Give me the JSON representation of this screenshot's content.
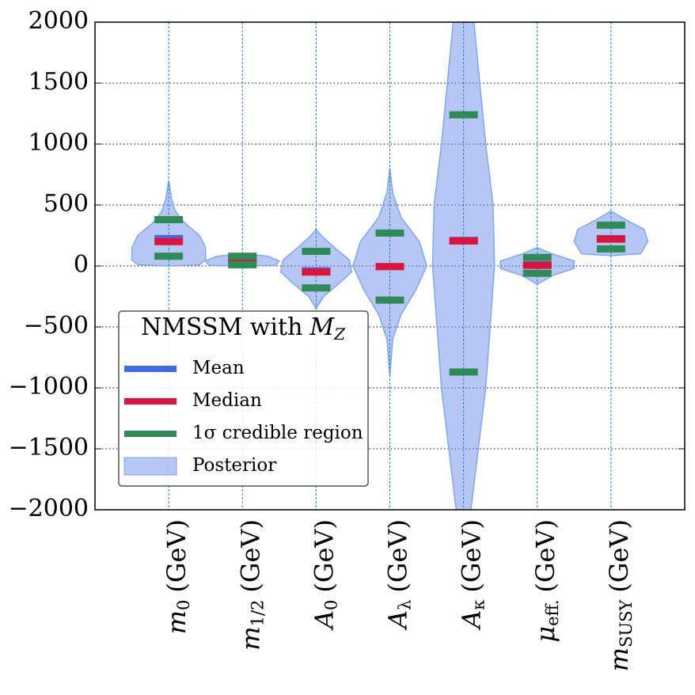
{
  "chart_data": {
    "type": "violin",
    "categories": [
      {
        "symbol": "m",
        "subscript": "0",
        "unit": "(GeV)"
      },
      {
        "symbol": "m",
        "subscript": "1/2",
        "unit": "(GeV)"
      },
      {
        "symbol": "A",
        "subscript": "0",
        "unit": "(GeV)"
      },
      {
        "symbol": "A",
        "subscript": "λ",
        "unit": "(GeV)"
      },
      {
        "symbol": "A",
        "subscript": "κ",
        "unit": "(GeV)"
      },
      {
        "symbol": "μ",
        "subscript": "eff.",
        "unit": "(GeV)"
      },
      {
        "symbol": "m",
        "subscript": "SUSY",
        "unit": "(GeV)"
      }
    ],
    "ylim": [
      -2000,
      2000
    ],
    "yticks": [
      {
        "value": -2000,
        "label": "−2000"
      },
      {
        "value": -1500,
        "label": "−1500"
      },
      {
        "value": -1000,
        "label": "−1000"
      },
      {
        "value": -500,
        "label": "−500"
      },
      0,
      500,
      1000,
      1500,
      2000
    ],
    "grid": true,
    "legend_title": {
      "text": "NMSSM with",
      "symbol": "M",
      "subscript": "Z"
    },
    "legend": "lower left",
    "series": [
      {
        "name": "Mean",
        "color": "#4169e1",
        "values": [
          225,
          45,
          -40,
          -5,
          210,
          10,
          225
        ]
      },
      {
        "name": "Median",
        "color": "#dc143c",
        "values": [
          200,
          40,
          -50,
          -5,
          205,
          5,
          220
        ]
      },
      {
        "name": "1σ credible region",
        "color": "#2e8b57",
        "lower": [
          80,
          10,
          -180,
          -280,
          -870,
          -60,
          140
        ],
        "upper": [
          380,
          80,
          120,
          270,
          1240,
          70,
          335
        ]
      }
    ],
    "posterior": {
      "name": "Posterior",
      "color": "#6f8fe8",
      "edge": "#7fa6f5",
      "profiles": [
        [
          [
            0,
            0
          ],
          [
            10,
            0.42
          ],
          [
            50,
            0.5
          ],
          [
            150,
            0.5
          ],
          [
            250,
            0.42
          ],
          [
            350,
            0.22
          ],
          [
            450,
            0.09
          ],
          [
            550,
            0.04
          ],
          [
            700,
            0
          ]
        ],
        [
          [
            0,
            0
          ],
          [
            5,
            0.45
          ],
          [
            40,
            0.5
          ],
          [
            80,
            0.35
          ],
          [
            100,
            0
          ]
        ],
        [
          [
            -350,
            0
          ],
          [
            -250,
            0.1
          ],
          [
            -150,
            0.3
          ],
          [
            -50,
            0.48
          ],
          [
            50,
            0.45
          ],
          [
            150,
            0.25
          ],
          [
            250,
            0.07
          ],
          [
            300,
            0
          ]
        ],
        [
          [
            -900,
            0
          ],
          [
            -600,
            0.04
          ],
          [
            -400,
            0.15
          ],
          [
            -200,
            0.35
          ],
          [
            0,
            0.5
          ],
          [
            200,
            0.4
          ],
          [
            400,
            0.15
          ],
          [
            600,
            0.04
          ],
          [
            800,
            0
          ]
        ],
        [
          [
            -2500,
            0
          ],
          [
            -2000,
            0.1
          ],
          [
            -1000,
            0.3
          ],
          [
            0,
            0.42
          ],
          [
            500,
            0.4
          ],
          [
            1000,
            0.3
          ],
          [
            1500,
            0.22
          ],
          [
            2000,
            0.14
          ],
          [
            2500,
            0
          ]
        ],
        [
          [
            -150,
            0
          ],
          [
            -80,
            0.2
          ],
          [
            -20,
            0.5
          ],
          [
            40,
            0.5
          ],
          [
            100,
            0.2
          ],
          [
            150,
            0
          ]
        ],
        [
          [
            85,
            0
          ],
          [
            100,
            0.4
          ],
          [
            200,
            0.5
          ],
          [
            300,
            0.45
          ],
          [
            380,
            0.2
          ],
          [
            450,
            0
          ]
        ]
      ]
    }
  }
}
